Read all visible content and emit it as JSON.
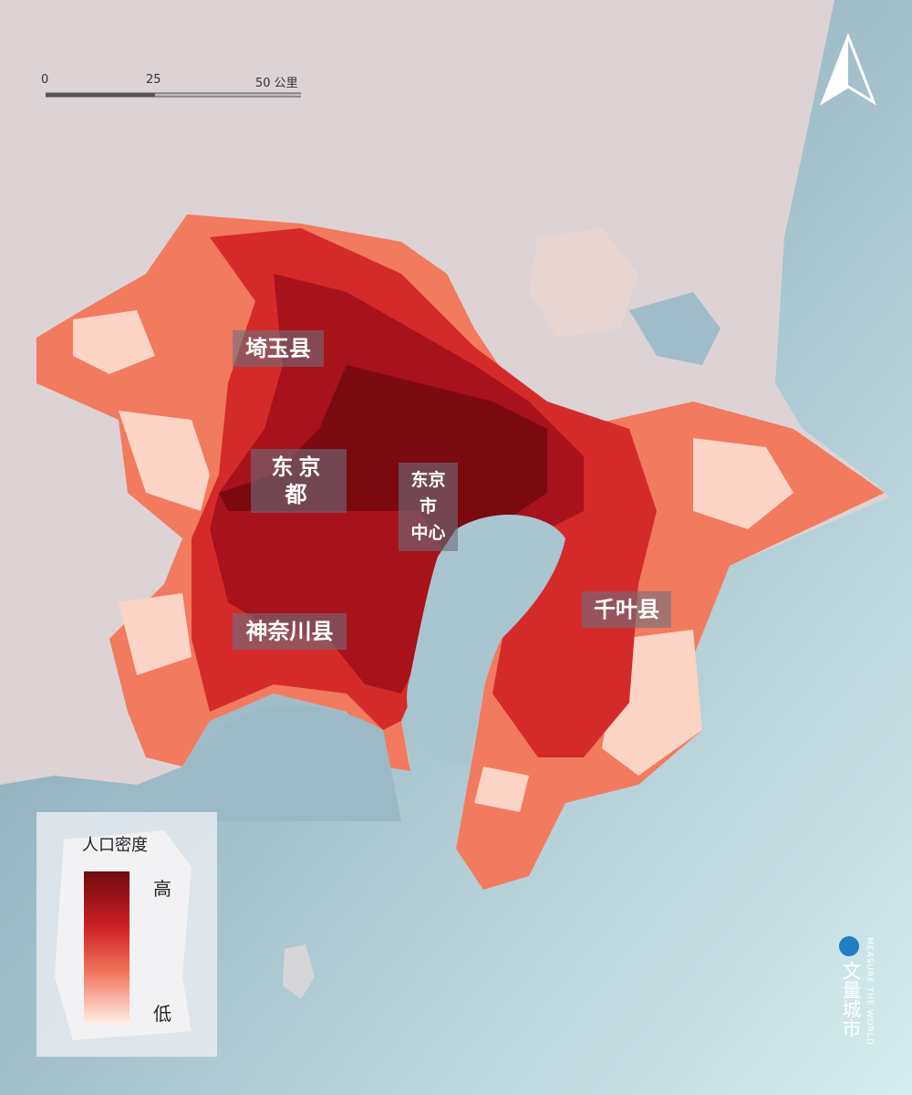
{
  "scale_bar": {
    "labels": [
      "0",
      "25",
      "50 公里"
    ]
  },
  "regions": [
    {
      "lines": [
        "埼玉县"
      ]
    },
    {
      "lines": [
        "东京都"
      ]
    },
    {
      "lines": [
        "东京市",
        "中心"
      ]
    },
    {
      "lines": [
        "神奈川县"
      ]
    },
    {
      "lines": [
        "千叶县"
      ]
    }
  ],
  "legend": {
    "title": "人口密度",
    "high": "高",
    "low": "低"
  },
  "brand": {
    "name": "文量城市",
    "tagline": "MEASURE THE WORLD"
  }
}
